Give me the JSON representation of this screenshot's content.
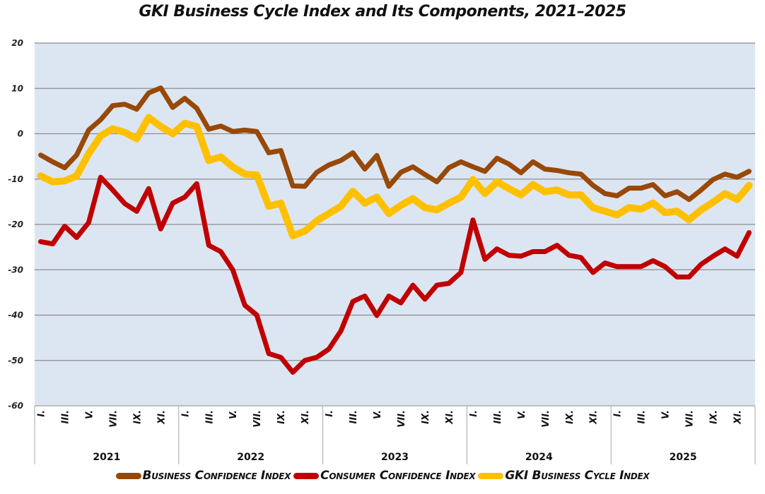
{
  "chart_data": {
    "type": "line",
    "title": "GKI Business Cycle Index and Its Components, 2021–2025",
    "xlabel": "",
    "ylabel": "",
    "ylim": [
      -60,
      20
    ],
    "yticks": [
      20,
      10,
      0,
      -10,
      -20,
      -30,
      -40,
      -50,
      -60
    ],
    "ytick_labels": [
      "20",
      "10",
      "0",
      "-10",
      "-20",
      "-30",
      "-40",
      "-50",
      "-60"
    ],
    "grid": true,
    "legend_position": "bottom",
    "years": [
      "2021",
      "2022",
      "2023",
      "2024",
      "2025"
    ],
    "month_labels": [
      "I.",
      "III.",
      "V.",
      "VII.",
      "IX.",
      "XI."
    ],
    "months_per_year": 12,
    "series": [
      {
        "name": "Business Confidence Index",
        "color": "#984807",
        "values": [
          -4.7,
          -6.2,
          -7.5,
          -4.7,
          0.8,
          3.1,
          6.2,
          6.5,
          5.4,
          9.0,
          10.1,
          5.8,
          7.8,
          5.6,
          1.0,
          1.7,
          0.5,
          0.8,
          0.5,
          -4.2,
          -3.7,
          -11.5,
          -11.6,
          -8.5,
          -6.9,
          -5.9,
          -4.2,
          -7.8,
          -4.8,
          -11.6,
          -8.5,
          -7.3,
          -9.0,
          -10.6,
          -7.5,
          -6.2,
          -7.3,
          -8.3,
          -5.4,
          -6.7,
          -8.6,
          -6.2,
          -7.8,
          -8.1,
          -8.6,
          -8.9,
          -11.4,
          -13.2,
          -13.7,
          -12.0,
          -12.0,
          -11.2,
          -13.7,
          -12.8,
          -14.5,
          -12.4,
          -10.1,
          -8.9,
          -9.6,
          -8.3
        ]
      },
      {
        "name": "Consumer Confidence Index",
        "color": "#C00000",
        "values": [
          -23.8,
          -24.3,
          -20.4,
          -22.9,
          -19.6,
          -9.6,
          -12.4,
          -15.4,
          -17.1,
          -12.1,
          -21.0,
          -15.3,
          -14.0,
          -11.0,
          -24.6,
          -26.0,
          -30.0,
          -37.8,
          -40.0,
          -48.5,
          -49.3,
          -52.6,
          -50.0,
          -49.3,
          -47.5,
          -43.5,
          -37.0,
          -35.8,
          -40.1,
          -35.8,
          -37.3,
          -33.4,
          -36.5,
          -33.4,
          -33.0,
          -30.6,
          -19.0,
          -27.7,
          -25.4,
          -26.8,
          -27.0,
          -26.0,
          -26.0,
          -24.6,
          -26.8,
          -27.3,
          -30.6,
          -28.5,
          -29.3,
          -29.3,
          -29.3,
          -28.0,
          -29.3,
          -31.6,
          -31.6,
          -28.8,
          -27.0,
          -25.4,
          -27.0,
          -21.8
        ]
      },
      {
        "name": "GKI Business Cycle Index",
        "color": "#FFC000",
        "values": [
          -9.3,
          -10.6,
          -10.4,
          -9.3,
          -4.4,
          -0.5,
          1.1,
          0.3,
          -1.1,
          3.6,
          1.6,
          0.0,
          2.3,
          1.6,
          -5.9,
          -5.1,
          -7.3,
          -8.9,
          -9.1,
          -16.0,
          -15.3,
          -22.5,
          -21.5,
          -19.2,
          -17.6,
          -16.0,
          -12.7,
          -15.3,
          -14.0,
          -17.6,
          -15.8,
          -14.3,
          -16.3,
          -16.8,
          -15.3,
          -14.0,
          -10.1,
          -13.2,
          -10.6,
          -12.1,
          -13.5,
          -11.2,
          -12.8,
          -12.4,
          -13.5,
          -13.5,
          -16.3,
          -17.1,
          -17.9,
          -16.3,
          -16.6,
          -15.3,
          -17.4,
          -17.1,
          -19.0,
          -16.8,
          -15.1,
          -13.2,
          -14.5,
          -11.4
        ]
      }
    ]
  },
  "colors": {
    "plot_background": "#DCE6F2",
    "gridline": "#8C8C8C",
    "axis_line": "#A6A6A6"
  }
}
